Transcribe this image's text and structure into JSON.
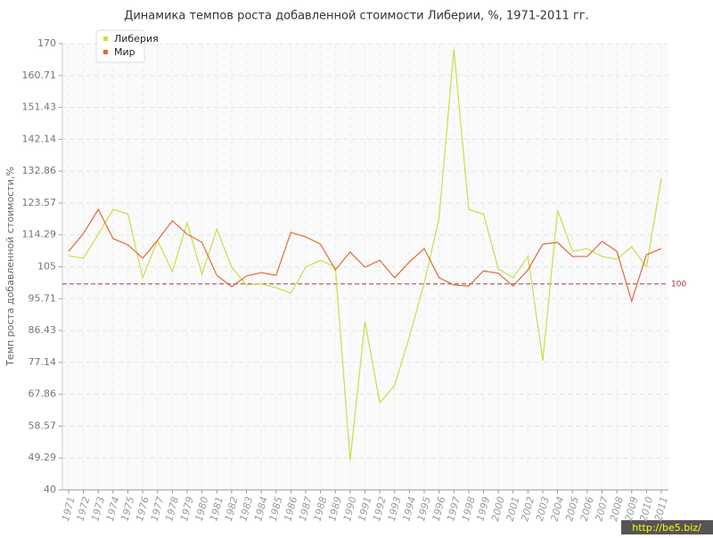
{
  "chart_data": {
    "type": "line",
    "title": "Динамика темпов роста добавленной стоимости Либерии, %, 1971-2011 гг.",
    "y_label": "Темп роста добавленной стоимости,%",
    "categories": [
      "1971",
      "1972",
      "1973",
      "1974",
      "1975",
      "1976",
      "1977",
      "1978",
      "1979",
      "1980",
      "1981",
      "1982",
      "1983",
      "1984",
      "1985",
      "1986",
      "1987",
      "1988",
      "1989",
      "1990",
      "1991",
      "1992",
      "1993",
      "1994",
      "1995",
      "1996",
      "1997",
      "1998",
      "1999",
      "2000",
      "2001",
      "2002",
      "2003",
      "2004",
      "2005",
      "2006",
      "2007",
      "2008",
      "2009",
      "2010",
      "2011"
    ],
    "series": [
      {
        "name": "Либерия",
        "color": "#c5e04a",
        "values": [
          108.2,
          107.5,
          114.5,
          121.7,
          120.4,
          101.8,
          112.7,
          103.6,
          117.8,
          102.8,
          116.0,
          104.9,
          99.7,
          100,
          98.9,
          97.3,
          104.9,
          106.9,
          104.9,
          48.6,
          89.0,
          65.4,
          70.4,
          84.6,
          100.2,
          119.1,
          168.4,
          121.7,
          120.4,
          104.4,
          101.8,
          108.0,
          77.6,
          121.5,
          109.5,
          110.3,
          108.0,
          107.2,
          110.8,
          104.9,
          130.8
        ]
      },
      {
        "name": "Мир",
        "color": "#e06a3a",
        "values": [
          109.5,
          114.7,
          121.7,
          113.2,
          111.4,
          107.5,
          112.7,
          118.4,
          114.5,
          112.1,
          102.5,
          99.2,
          102.3,
          103.3,
          102.5,
          115.0,
          113.7,
          111.6,
          104.1,
          109.3,
          104.9,
          106.9,
          101.8,
          106.4,
          110.3,
          101.8,
          99.7,
          99.4,
          103.8,
          103.1,
          99.4,
          104.1,
          111.6,
          112.1,
          108.0,
          108.0,
          112.4,
          109.5,
          95.0,
          108.5,
          110.3
        ]
      }
    ],
    "ylim": [
      40,
      170
    ],
    "yticks": [
      40,
      49.29,
      58.57,
      67.86,
      77.14,
      86.43,
      95.71,
      105,
      114.29,
      123.57,
      132.86,
      142.14,
      151.43,
      160.71,
      170
    ],
    "reference_line": 100,
    "reference_color": "#a33a4a",
    "grid": true,
    "legend_position": "top-left"
  },
  "watermark": "http://be5.biz/"
}
